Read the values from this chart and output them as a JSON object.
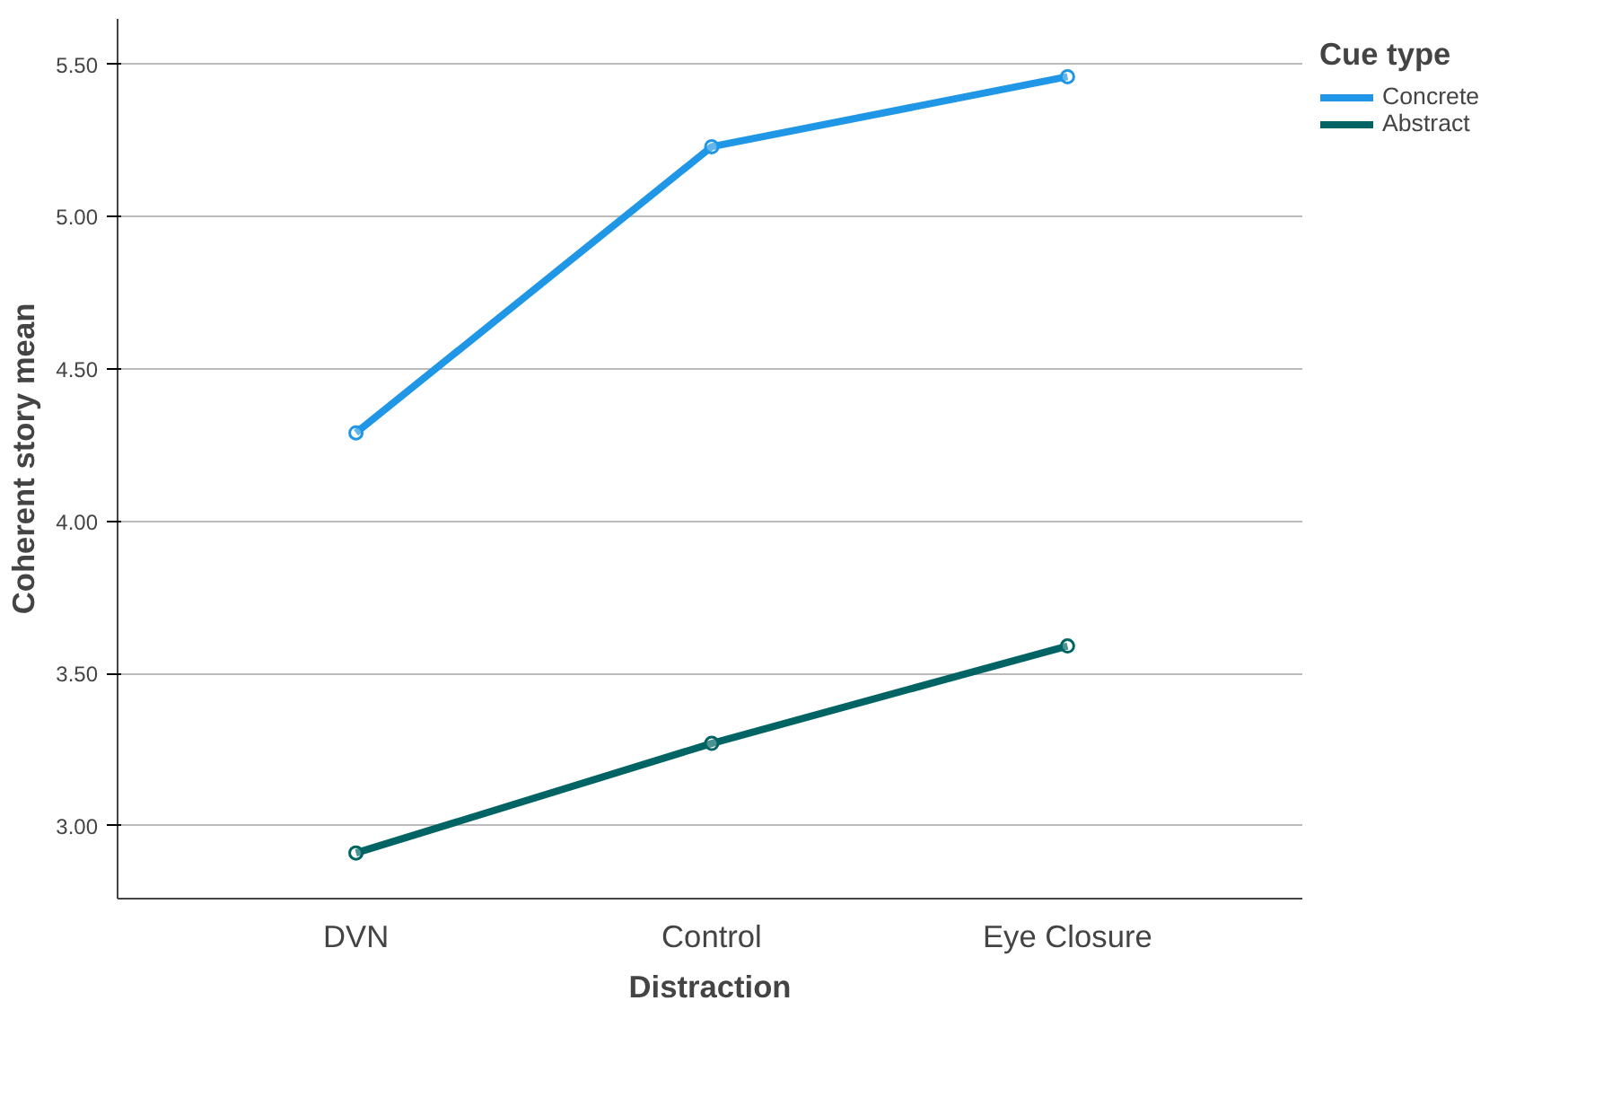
{
  "chart_data": {
    "type": "line",
    "xlabel": "Distraction",
    "ylabel": "Coherent story mean",
    "legend_title": "Cue type",
    "categories": [
      "DVN",
      "Control",
      "Eye Closure"
    ],
    "series": [
      {
        "name": "Concrete",
        "color": "#1f96e6",
        "values": [
          4.29,
          5.23,
          5.46
        ]
      },
      {
        "name": "Abstract",
        "color": "#006464",
        "values": [
          2.91,
          3.27,
          3.59
        ]
      }
    ],
    "ylim": [
      2.76,
      5.65
    ],
    "yticks": [
      {
        "value": 3.0,
        "label": "3.00"
      },
      {
        "value": 3.5,
        "label": "3.50"
      },
      {
        "value": 4.0,
        "label": "4.00"
      },
      {
        "value": 4.5,
        "label": "4.50"
      },
      {
        "value": 5.0,
        "label": "5.00"
      },
      {
        "value": 5.5,
        "label": "5.50"
      }
    ],
    "grid": "y",
    "legend": "top right",
    "marker": "circle",
    "line_style": "solid"
  }
}
